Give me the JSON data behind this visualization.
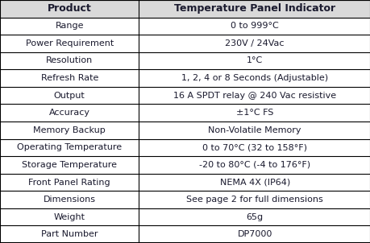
{
  "header": [
    "Product",
    "Temperature Panel Indicator"
  ],
  "rows": [
    [
      "Range",
      "0 to 999°C"
    ],
    [
      "Power Requirement",
      "230V / 24Vac"
    ],
    [
      "Resolution",
      "1°C"
    ],
    [
      "Refresh Rate",
      "1, 2, 4 or 8 Seconds (Adjustable)"
    ],
    [
      "Output",
      "16 A SPDT relay @ 240 Vac resistive"
    ],
    [
      "Accuracy",
      "±1°C FS"
    ],
    [
      "Memory Backup",
      "Non-Volatile Memory"
    ],
    [
      "Operating Temperature",
      "0 to 70°C (32 to 158°F)"
    ],
    [
      "Storage Temperature",
      "-20 to 80°C (-4 to 176°F)"
    ],
    [
      "Front Panel Rating",
      "NEMA 4X (IP64)"
    ],
    [
      "Dimensions",
      "See page 2 for full dimensions"
    ],
    [
      "Weight",
      "65g"
    ],
    [
      "Part Number",
      "DP7000"
    ]
  ],
  "header_bg": "#d9d9d9",
  "row_bg": "#ffffff",
  "border_color": "#000000",
  "text_color": "#1a1a2e",
  "header_fontsize": 9.0,
  "row_fontsize": 8.0,
  "col_split": 0.375,
  "fig_width": 4.6,
  "fig_height": 3.02,
  "dpi": 100
}
